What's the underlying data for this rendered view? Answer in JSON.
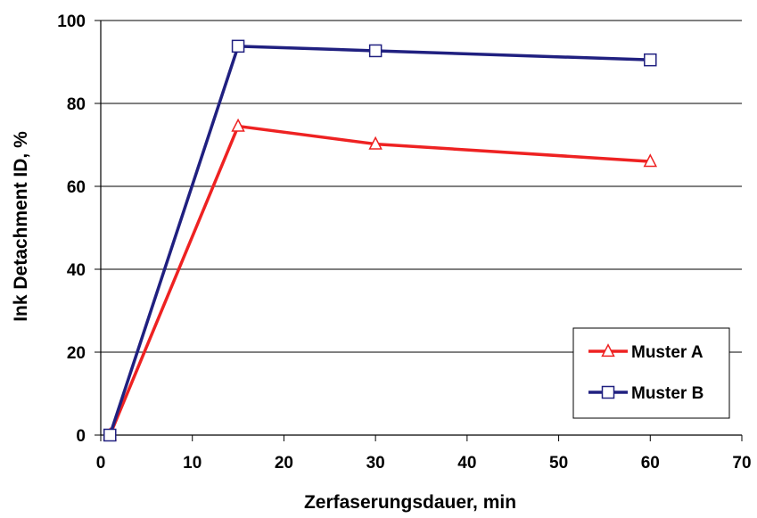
{
  "chart_data": {
    "type": "line",
    "xlabel": "Zerfaserungsdauer, min",
    "ylabel": "Ink Detachment ID, %",
    "xlim": [
      0,
      70
    ],
    "ylim": [
      0,
      100
    ],
    "xticks": [
      0,
      10,
      20,
      30,
      40,
      50,
      60,
      70
    ],
    "yticks": [
      0,
      20,
      40,
      60,
      80,
      100
    ],
    "grid": "horizontal",
    "legend_position": "bottom-right",
    "series": [
      {
        "name": "Muster A",
        "color": "#ee2222",
        "marker": "triangle",
        "x": [
          1,
          15,
          30,
          60
        ],
        "y": [
          0,
          74.5,
          70.2,
          66
        ]
      },
      {
        "name": "Muster B",
        "color": "#202080",
        "marker": "square",
        "x": [
          1,
          15,
          30,
          60
        ],
        "y": [
          0,
          93.8,
          92.7,
          90.5
        ]
      }
    ]
  }
}
